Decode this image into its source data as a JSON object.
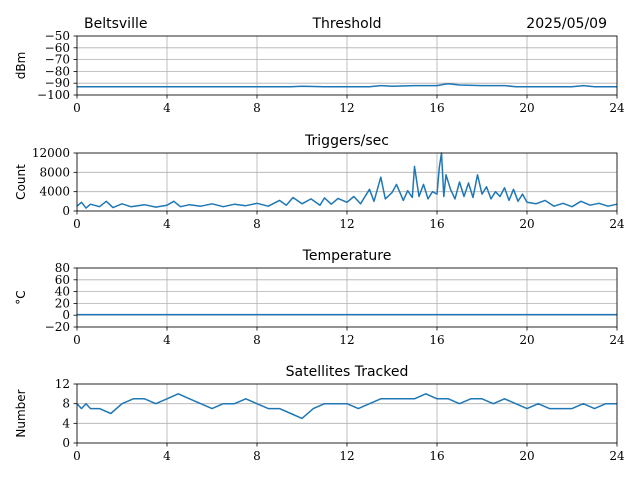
{
  "header": {
    "location": "Beltsville",
    "date": "2025/05/09"
  },
  "colors": {
    "series": "#1f77b4",
    "grid": "#b0b0b0",
    "axes": "#000000"
  },
  "chart_data": [
    {
      "type": "line",
      "title": "Threshold",
      "ylabel": "dBm",
      "xlim": [
        0,
        24
      ],
      "ylim": [
        -100,
        -50
      ],
      "xticks": [
        0,
        4,
        8,
        12,
        16,
        20,
        24
      ],
      "yticks": [
        -100,
        -90,
        -80,
        -70,
        -60,
        -50
      ],
      "ytick_labels": [
        "−100",
        "−90",
        "−80",
        "−70",
        "−60",
        "−50"
      ],
      "grid": true,
      "series": [
        {
          "x": [
            0,
            2,
            4,
            6,
            8,
            9.5,
            10,
            11,
            12,
            13,
            13.5,
            14,
            15,
            16,
            16.3,
            16.5,
            17,
            18,
            19,
            19.5,
            20,
            22,
            22.5,
            23,
            24
          ],
          "values": [
            -93,
            -93,
            -93,
            -93,
            -93,
            -93,
            -92.5,
            -93,
            -93,
            -93,
            -92,
            -92.5,
            -92,
            -92,
            -91,
            -90.5,
            -91.5,
            -92,
            -92,
            -93,
            -93,
            -93,
            -92,
            -93,
            -93
          ]
        }
      ]
    },
    {
      "type": "line",
      "title": "Triggers/sec",
      "ylabel": "Count",
      "xlim": [
        0,
        24
      ],
      "ylim": [
        0,
        12000
      ],
      "xticks": [
        0,
        4,
        8,
        12,
        16,
        20,
        24
      ],
      "yticks": [
        0,
        4000,
        8000,
        12000
      ],
      "ytick_labels": [
        "0",
        "4000",
        "8000",
        "12000"
      ],
      "grid": true,
      "series": [
        {
          "x": [
            0,
            0.2,
            0.4,
            0.6,
            1,
            1.3,
            1.6,
            2,
            2.4,
            3,
            3.5,
            4,
            4.3,
            4.6,
            5,
            5.5,
            6,
            6.5,
            7,
            7.5,
            8,
            8.5,
            9,
            9.3,
            9.6,
            10,
            10.4,
            10.8,
            11,
            11.3,
            11.6,
            12,
            12.3,
            12.6,
            13,
            13.2,
            13.5,
            13.7,
            14,
            14.2,
            14.5,
            14.7,
            14.9,
            15,
            15.2,
            15.4,
            15.6,
            15.8,
            16,
            16.1,
            16.2,
            16.3,
            16.4,
            16.6,
            16.8,
            17,
            17.2,
            17.4,
            17.6,
            17.8,
            18,
            18.2,
            18.4,
            18.6,
            18.8,
            19,
            19.2,
            19.4,
            19.6,
            19.8,
            20,
            20.4,
            20.8,
            21.2,
            21.6,
            22,
            22.4,
            22.8,
            23.2,
            23.6,
            24
          ],
          "values": [
            1000,
            1800,
            600,
            1400,
            900,
            2000,
            700,
            1500,
            900,
            1300,
            800,
            1200,
            2000,
            900,
            1300,
            1000,
            1500,
            900,
            1400,
            1100,
            1600,
            1000,
            2200,
            1200,
            2800,
            1500,
            2500,
            1200,
            2700,
            1400,
            2600,
            1800,
            3000,
            1500,
            4500,
            2000,
            7000,
            2500,
            3800,
            5500,
            2200,
            4200,
            2800,
            9200,
            3000,
            5500,
            2500,
            4000,
            3500,
            9000,
            12000,
            3000,
            7500,
            4500,
            2500,
            6000,
            3000,
            5800,
            2800,
            7500,
            3500,
            5000,
            2500,
            4000,
            3000,
            4800,
            2200,
            4500,
            2000,
            3500,
            1800,
            1500,
            2200,
            1000,
            1600,
            900,
            2000,
            1200,
            1600,
            1000,
            1400
          ]
        }
      ]
    },
    {
      "type": "line",
      "title": "Temperature",
      "ylabel": "°C",
      "xlim": [
        0,
        24
      ],
      "ylim": [
        -20,
        80
      ],
      "xticks": [
        0,
        4,
        8,
        12,
        16,
        20,
        24
      ],
      "yticks": [
        -20,
        0,
        20,
        40,
        60,
        80
      ],
      "ytick_labels": [
        "−20",
        "0",
        "20",
        "40",
        "60",
        "80"
      ],
      "grid": true,
      "series": [
        {
          "x": [
            0,
            24
          ],
          "values": [
            1,
            1
          ]
        }
      ]
    },
    {
      "type": "line",
      "title": "Satellites Tracked",
      "ylabel": "Number",
      "xlim": [
        0,
        24
      ],
      "ylim": [
        0,
        12
      ],
      "xticks": [
        0,
        4,
        8,
        12,
        16,
        20,
        24
      ],
      "yticks": [
        0,
        4,
        8,
        12
      ],
      "ytick_labels": [
        "0",
        "4",
        "8",
        "12"
      ],
      "grid": true,
      "series": [
        {
          "x": [
            0,
            0.2,
            0.4,
            0.6,
            1,
            1.5,
            2,
            2.5,
            3,
            3.5,
            4,
            4.5,
            5,
            5.5,
            6,
            6.5,
            7,
            7.5,
            8,
            8.5,
            9,
            9.5,
            10,
            10.5,
            11,
            11.5,
            12,
            12.5,
            13,
            13.5,
            14,
            14.5,
            15,
            15.5,
            16,
            16.5,
            17,
            17.5,
            18,
            18.5,
            19,
            19.5,
            20,
            20.5,
            21,
            21.5,
            22,
            22.5,
            23,
            23.5,
            24
          ],
          "values": [
            8,
            7,
            8,
            7,
            7,
            6,
            8,
            9,
            9,
            8,
            9,
            10,
            9,
            8,
            7,
            8,
            8,
            9,
            8,
            7,
            7,
            6,
            5,
            7,
            8,
            8,
            8,
            7,
            8,
            9,
            9,
            9,
            9,
            10,
            9,
            9,
            8,
            9,
            9,
            8,
            9,
            8,
            7,
            8,
            7,
            7,
            7,
            8,
            7,
            8,
            8
          ]
        }
      ]
    }
  ]
}
